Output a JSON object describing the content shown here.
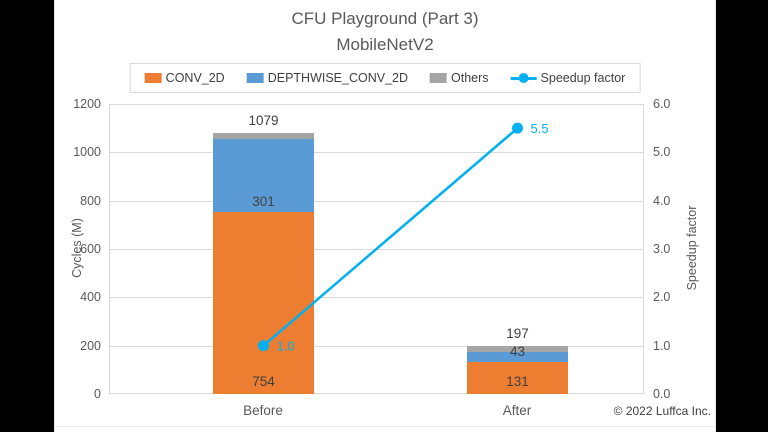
{
  "frame": {
    "background": "#000000",
    "slide_background": "#ffffff"
  },
  "chart_data": {
    "type": "bar",
    "subtype": "stacked-bar-with-line",
    "title": "CFU Playground (Part 3)",
    "subtitle": "MobileNetV2",
    "categories": [
      "Before",
      "After"
    ],
    "series": [
      {
        "name": "CONV_2D",
        "kind": "bar",
        "color": "#ED7D31",
        "values": [
          754,
          131
        ],
        "labels": [
          "754",
          "131"
        ]
      },
      {
        "name": "DEPTHWISE_CONV_2D",
        "kind": "bar",
        "color": "#5B9BD5",
        "values": [
          301,
          43
        ],
        "labels": [
          "301",
          "43"
        ]
      },
      {
        "name": "Others",
        "kind": "bar",
        "color": "#A5A5A5",
        "values": [
          24,
          23
        ],
        "labels": [
          "",
          ""
        ]
      },
      {
        "name": "Speedup factor",
        "kind": "line",
        "color": "#00B0F0",
        "values": [
          1.0,
          5.5
        ],
        "labels": [
          "1.0",
          "5.5"
        ]
      }
    ],
    "totals": [
      1079,
      197
    ],
    "total_labels": [
      "1079",
      "197"
    ],
    "axis_left": {
      "label": "Cycles (M)",
      "min": 0,
      "max": 1200,
      "step": 200,
      "ticks": [
        "0",
        "200",
        "400",
        "600",
        "800",
        "1000",
        "1200"
      ]
    },
    "axis_right": {
      "label": "Speedup factor",
      "min": 0,
      "max": 6,
      "step": 1,
      "ticks": [
        "0.0",
        "1.0",
        "2.0",
        "3.0",
        "4.0",
        "5.0",
        "6.0"
      ]
    },
    "legend_position": "top",
    "grid": true,
    "grid_color": "#D9D9D9"
  },
  "footer": {
    "copyright": "© 2022 Luffca Inc."
  }
}
